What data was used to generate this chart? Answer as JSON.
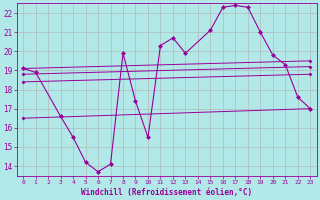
{
  "xlabel": "Windchill (Refroidissement éolien,°C)",
  "background_color": "#b2e8e8",
  "grid_color": "#b0b0b0",
  "line_color": "#990099",
  "ylim": [
    13.5,
    22.5
  ],
  "xlim": [
    -0.5,
    23.5
  ],
  "yticks": [
    14,
    15,
    16,
    17,
    18,
    19,
    20,
    21,
    22
  ],
  "xticks": [
    0,
    1,
    2,
    3,
    4,
    5,
    6,
    7,
    8,
    9,
    10,
    11,
    12,
    13,
    14,
    15,
    16,
    17,
    18,
    19,
    20,
    21,
    22,
    23
  ],
  "main_line": {
    "x": [
      0,
      1,
      3,
      4,
      5,
      6,
      7,
      8,
      9,
      10,
      11,
      12,
      13,
      15,
      16,
      17,
      18,
      19,
      20,
      21,
      22,
      23
    ],
    "y": [
      19.1,
      18.9,
      16.6,
      15.5,
      14.2,
      13.7,
      14.1,
      19.9,
      17.4,
      15.5,
      20.3,
      20.7,
      19.9,
      21.1,
      22.3,
      22.4,
      22.3,
      21.0,
      19.8,
      19.3,
      17.6,
      17.0
    ]
  },
  "band_upper": {
    "x": [
      0,
      23
    ],
    "y": [
      19.1,
      19.5
    ]
  },
  "band_mid_upper": {
    "x": [
      0,
      23
    ],
    "y": [
      18.8,
      19.2
    ]
  },
  "band_mid_lower": {
    "x": [
      0,
      23
    ],
    "y": [
      18.4,
      18.8
    ]
  },
  "band_lower": {
    "x": [
      0,
      23
    ],
    "y": [
      16.5,
      17.0
    ]
  }
}
